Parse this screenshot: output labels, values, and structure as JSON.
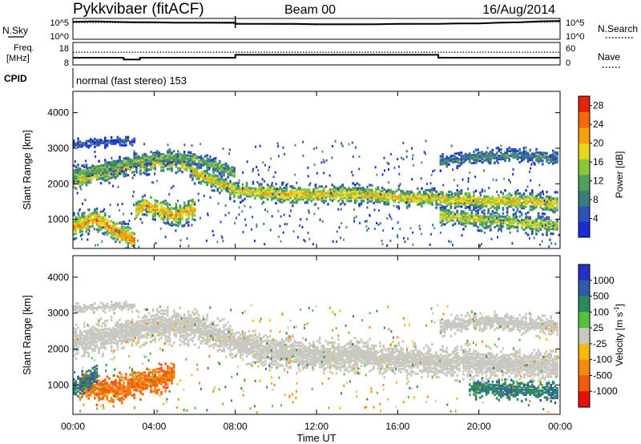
{
  "header": {
    "station": "Pykkvibaer (fitACF)",
    "beam": "Beam 00",
    "date": "16/Aug/2014"
  },
  "chart_data": [
    {
      "type": "line",
      "panel": "noise",
      "left_label": "N.Sky",
      "right_label": "N.Search",
      "left_ticks": [
        "10^5",
        "10^0"
      ],
      "right_ticks": [
        "10^5",
        "10^0"
      ],
      "series": [
        {
          "name": "N.Sky",
          "style": "solid",
          "x_hours": [
            0,
            1,
            2,
            3,
            4,
            5,
            6,
            7,
            8,
            8.0,
            9,
            10,
            11,
            12,
            13,
            14,
            15,
            16,
            17,
            18,
            19,
            20,
            21,
            22,
            23,
            24
          ],
          "values": [
            4.2,
            4.3,
            4.2,
            4.1,
            4.1,
            4.0,
            4.0,
            4.0,
            4.0,
            3.7,
            3.7,
            3.7,
            3.7,
            3.6,
            3.6,
            3.6,
            3.6,
            3.7,
            3.7,
            3.7,
            3.8,
            3.8,
            4.0,
            4.1,
            4.3,
            4.4
          ]
        },
        {
          "name": "N.Search",
          "style": "dotted",
          "x_hours": [
            0,
            2,
            4,
            6,
            8,
            10,
            12,
            14,
            16,
            18,
            20,
            22,
            24
          ],
          "values": [
            4.0,
            4.0,
            3.9,
            3.9,
            3.8,
            3.6,
            3.5,
            3.5,
            3.6,
            3.7,
            3.8,
            4.0,
            4.2
          ]
        }
      ],
      "ylim_log10": [
        0,
        5
      ]
    },
    {
      "type": "line",
      "panel": "frequency",
      "left_label_line1": "Freq.",
      "left_label_line2": "[MHz]",
      "right_label": "Nave",
      "left_ticks": [
        "18",
        "8"
      ],
      "right_ticks": [
        "60",
        "0"
      ],
      "series": [
        {
          "name": "Freq",
          "style": "solid",
          "x_hours": [
            0,
            2.5,
            2.5,
            3.3,
            3.3,
            8,
            8,
            18,
            18,
            24
          ],
          "values": [
            11.2,
            11.2,
            10.4,
            10.4,
            11.2,
            11.2,
            12.5,
            12.5,
            11.2,
            11.2
          ]
        },
        {
          "name": "Nave",
          "style": "dotted",
          "x_hours": [
            0,
            24
          ],
          "values": [
            34,
            34
          ]
        }
      ],
      "ylim_left": [
        8,
        18
      ],
      "ylim_right": [
        0,
        60
      ]
    },
    {
      "type": "table",
      "panel": "cpid",
      "label": "CPID",
      "text": "normal (fast stereo) 153"
    },
    {
      "type": "heatmap",
      "panel": "power",
      "ylabel": "Slant Range [km]",
      "yticks": [
        1000,
        2000,
        3000,
        4000
      ],
      "ylim": [
        180,
        4600
      ],
      "xlim_hours": [
        0,
        24
      ],
      "colorbar_label": "Power [dB]",
      "colorbar_ticks": [
        4,
        8,
        12,
        16,
        20,
        24,
        28
      ],
      "colorbar_range": [
        0,
        30
      ],
      "colors": [
        "#1c2bd6",
        "#2e51b8",
        "#3b7d7d",
        "#4fa05a",
        "#8cc63a",
        "#e6d71e",
        "#f5a012",
        "#f26a0c",
        "#e5230c"
      ],
      "bands": [
        {
          "x": [
            0,
            0.3,
            1.0,
            1.8,
            2.5,
            3.2,
            4.0,
            4.8,
            5.5,
            6.0,
            6.8,
            7.5,
            8.0,
            8.5,
            9.5,
            10.5,
            11.5,
            12.5,
            13.5,
            14.5,
            15.5,
            16.5,
            17.5,
            18.0,
            18.5,
            19.5,
            20.5,
            21.5,
            22.5,
            23.5,
            24
          ],
          "y": [
            2000,
            2150,
            2250,
            2350,
            2450,
            2550,
            2600,
            2600,
            2550,
            2300,
            2100,
            1950,
            1800,
            1800,
            1750,
            1700,
            1700,
            1700,
            1700,
            1700,
            1650,
            1600,
            1600,
            1600,
            1550,
            1550,
            1500,
            1500,
            1500,
            1450,
            1450
          ],
          "w": 200,
          "p": 20
        },
        {
          "x": [
            0,
            1.0,
            2.0,
            3.0,
            4.0,
            5.0,
            6.0,
            7.0,
            8.0
          ],
          "y": [
            2300,
            2400,
            2500,
            2650,
            2750,
            2750,
            2700,
            2500,
            2300
          ],
          "w": 150,
          "p": 14
        },
        {
          "x": [
            0,
            0.5,
            1.0,
            1.5,
            2.0,
            2.5,
            3.0
          ],
          "y": [
            800,
            900,
            1000,
            900,
            700,
            550,
            400
          ],
          "w": 250,
          "p": 24
        },
        {
          "x": [
            3.0,
            3.5,
            4.0,
            4.5,
            5.0,
            5.5,
            6.0
          ],
          "y": [
            1200,
            1400,
            1300,
            1200,
            1100,
            1200,
            1300
          ],
          "w": 250,
          "p": 22
        },
        {
          "x": [
            18.0,
            19.0,
            20.0,
            21.0,
            22.0,
            23.0,
            24.0
          ],
          "y": [
            1100,
            1050,
            1000,
            950,
            900,
            850,
            800
          ],
          "w": 200,
          "p": 18
        },
        {
          "x": [
            18.0,
            19.0,
            20.0,
            21.0,
            22.0,
            23.0,
            24.0
          ],
          "y": [
            2600,
            2700,
            2750,
            2800,
            2800,
            2750,
            2700
          ],
          "w": 150,
          "p": 10
        },
        {
          "x": [
            0,
            1.0,
            2.0,
            3.0
          ],
          "y": [
            3100,
            3150,
            3200,
            3200
          ],
          "w": 100,
          "p": 6
        }
      ]
    },
    {
      "type": "heatmap",
      "panel": "velocity",
      "ylabel": "Slant Range [km]",
      "yticks": [
        1000,
        2000,
        3000,
        4000
      ],
      "ylim": [
        180,
        4600
      ],
      "xlim_hours": [
        0,
        24
      ],
      "xticks": [
        "00:00",
        "04:00",
        "08:00",
        "12:00",
        "16:00",
        "20:00",
        "00:00"
      ],
      "xlabel": "Time UT",
      "colorbar_label": "Velocity [m s",
      "colorbar_unit_exponent": "-1",
      "colorbar_unit_close": "]",
      "colorbar_ticks": [
        "1000",
        "500",
        "100",
        "25",
        "-25",
        "-100",
        "-500",
        "-1000"
      ],
      "colors": [
        "#2430c6",
        "#2e5aa8",
        "#2e8a5e",
        "#55c23a",
        "#c8c8c0",
        "#f5b80f",
        "#f58a10",
        "#f05a0c",
        "#e0140c"
      ],
      "bands": [
        {
          "x": [
            0,
            1.0,
            2.0,
            3.0,
            4.0,
            5.0,
            6.0,
            7.0,
            8.0,
            9.0,
            10.0,
            11.0,
            12.0,
            13.0,
            14.0,
            15.0,
            16.0,
            17.0,
            18.0,
            19.0,
            20.0,
            21.0,
            22.0,
            23.0,
            24.0
          ],
          "y": [
            2200,
            2300,
            2400,
            2550,
            2650,
            2650,
            2600,
            2400,
            2200,
            2000,
            1900,
            1850,
            1800,
            1800,
            1800,
            1750,
            1700,
            1700,
            1650,
            1650,
            1600,
            1600,
            1550,
            1550,
            1500
          ],
          "w": 350,
          "v": 0
        },
        {
          "x": [
            0.3,
            1.0,
            2.0,
            3.0,
            4.0,
            5.0
          ],
          "y": [
            1000,
            900,
            850,
            1000,
            1150,
            1300
          ],
          "w": 300,
          "v": -300
        },
        {
          "x": [
            0,
            0.6,
            1.2
          ],
          "y": [
            900,
            1100,
            1300
          ],
          "w": 250,
          "v": 300
        },
        {
          "x": [
            19.5,
            20.5,
            21.5,
            22.5,
            23.5,
            24.0
          ],
          "y": [
            900,
            900,
            850,
            850,
            800,
            800
          ],
          "w": 200,
          "v": 250
        },
        {
          "x": [
            18.0,
            19.0,
            20.0,
            21.0,
            22.0,
            23.0,
            24.0
          ],
          "y": [
            2600,
            2700,
            2750,
            2750,
            2700,
            2650,
            2600
          ],
          "w": 200,
          "v": 0
        },
        {
          "x": [
            0,
            1.0,
            2.0,
            3.0
          ],
          "y": [
            3150,
            3150,
            3200,
            3200
          ],
          "w": 100,
          "v": 0
        }
      ]
    }
  ]
}
